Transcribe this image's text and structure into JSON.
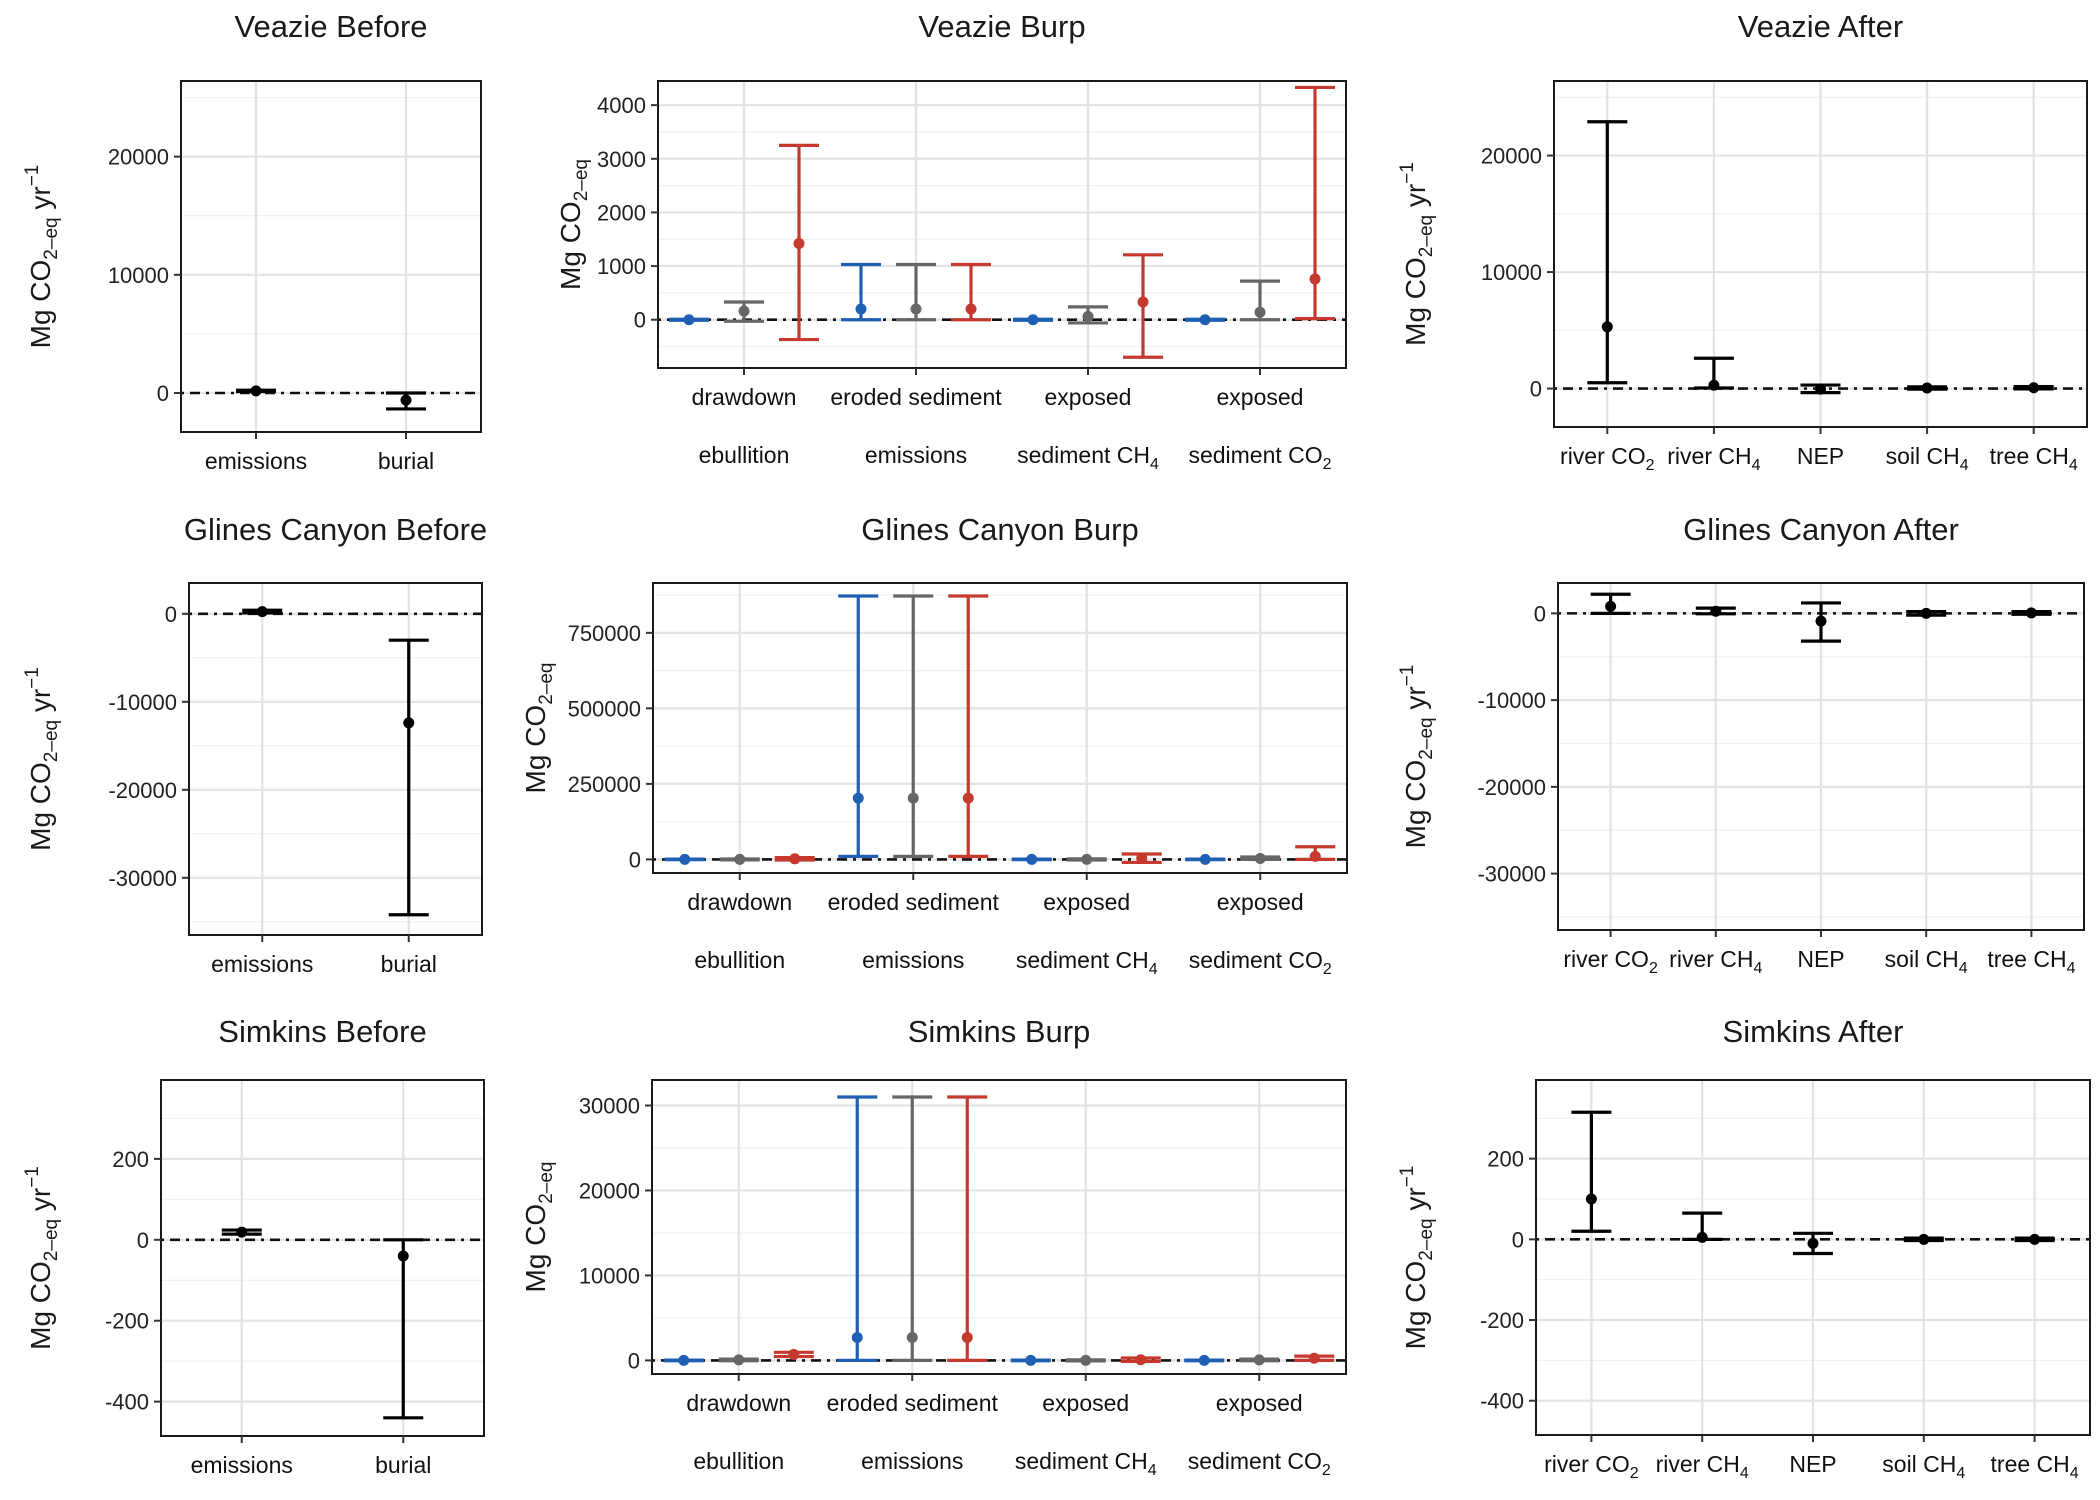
{
  "chart_data": [
    {
      "type": "errorbar",
      "title": "Veazie Before",
      "ylabel": "Mg CO2-eq yr-1",
      "categories": [
        {
          "line1": "emissions"
        },
        {
          "line1": "burial"
        }
      ],
      "ylim": [
        -3300,
        26400
      ],
      "yticks": [
        0,
        10000,
        20000
      ],
      "series": [
        {
          "color": "#000000",
          "values": [
            {
              "y": 180,
              "lo": 130,
              "hi": 230
            },
            {
              "y": -600,
              "lo": -1350,
              "hi": 0
            }
          ]
        }
      ]
    },
    {
      "type": "errorbar",
      "title": "Veazie Burp",
      "ylabel": "Mg CO2-eq",
      "categories": [
        {
          "line1": "drawdown",
          "line2": "ebullition"
        },
        {
          "line1": "eroded sediment",
          "line2": "emissions"
        },
        {
          "line1": "exposed",
          "line2": "sediment CH",
          "line2sub": "4"
        },
        {
          "line1": "exposed",
          "line2": "sediment CO",
          "line2sub": "2"
        }
      ],
      "ylim": [
        -900,
        4450
      ],
      "yticks": [
        0,
        1000,
        2000,
        3000,
        4000
      ],
      "series": [
        {
          "color": "#1f5fb4",
          "values": [
            {
              "y": 0,
              "lo": -10,
              "hi": 10
            },
            {
              "y": 200,
              "lo": 0,
              "hi": 1030
            },
            {
              "y": 0,
              "lo": -10,
              "hi": 10
            },
            {
              "y": 0,
              "lo": -10,
              "hi": 10
            }
          ]
        },
        {
          "color": "#666666",
          "values": [
            {
              "y": 160,
              "lo": -30,
              "hi": 330
            },
            {
              "y": 200,
              "lo": 0,
              "hi": 1030
            },
            {
              "y": 60,
              "lo": -60,
              "hi": 240
            },
            {
              "y": 140,
              "lo": 0,
              "hi": 720
            }
          ]
        },
        {
          "color": "#c6392f",
          "values": [
            {
              "y": 1420,
              "lo": -370,
              "hi": 3250
            },
            {
              "y": 200,
              "lo": 0,
              "hi": 1030
            },
            {
              "y": 330,
              "lo": -700,
              "hi": 1210
            },
            {
              "y": 760,
              "lo": 20,
              "hi": 4330
            }
          ]
        }
      ]
    },
    {
      "type": "errorbar",
      "title": "Veazie After",
      "ylabel": "Mg CO2-eq yr-1",
      "categories": [
        {
          "line1": "river CO",
          "line1sub": "2"
        },
        {
          "line1": "river CH",
          "line1sub": "4"
        },
        {
          "line1": "NEP"
        },
        {
          "line1": "soil CH",
          "line1sub": "4"
        },
        {
          "line1": "tree CH",
          "line1sub": "4"
        }
      ],
      "ylim": [
        -3300,
        26400
      ],
      "yticks": [
        0,
        10000,
        20000
      ],
      "series": [
        {
          "color": "#000000",
          "values": [
            {
              "y": 5300,
              "lo": 500,
              "hi": 22900
            },
            {
              "y": 280,
              "lo": 50,
              "hi": 2600
            },
            {
              "y": -50,
              "lo": -350,
              "hi": 300
            },
            {
              "y": 50,
              "lo": -50,
              "hi": 150
            },
            {
              "y": 70,
              "lo": -30,
              "hi": 170
            }
          ]
        }
      ]
    },
    {
      "type": "errorbar",
      "title": "Glines Canyon Before",
      "ylabel": "Mg CO2-eq yr-1",
      "categories": [
        {
          "line1": "emissions"
        },
        {
          "line1": "burial"
        }
      ],
      "ylim": [
        -36500,
        3500
      ],
      "yticks": [
        -30000,
        -20000,
        -10000,
        0
      ],
      "series": [
        {
          "color": "#000000",
          "values": [
            {
              "y": 250,
              "lo": 100,
              "hi": 400
            },
            {
              "y": -12400,
              "lo": -34200,
              "hi": -3000
            }
          ]
        }
      ]
    },
    {
      "type": "errorbar",
      "title": "Glines Canyon Burp",
      "ylabel": "Mg CO2-eq",
      "categories": [
        {
          "line1": "drawdown",
          "line2": "ebullition"
        },
        {
          "line1": "eroded sediment",
          "line2": "emissions"
        },
        {
          "line1": "exposed",
          "line2": "sediment CH",
          "line2sub": "4"
        },
        {
          "line1": "exposed",
          "line2": "sediment CO",
          "line2sub": "2"
        }
      ],
      "ylim": [
        -45000,
        915000
      ],
      "yticks": [
        0,
        250000,
        500000,
        750000
      ],
      "series": [
        {
          "color": "#1f5fb4",
          "values": [
            {
              "y": 0,
              "lo": -1000,
              "hi": 1000
            },
            {
              "y": 203000,
              "lo": 10000,
              "hi": 872000
            },
            {
              "y": 0,
              "lo": -1000,
              "hi": 1000
            },
            {
              "y": 0,
              "lo": -1000,
              "hi": 1000
            }
          ]
        },
        {
          "color": "#666666",
          "values": [
            {
              "y": 0,
              "lo": -1500,
              "hi": 1500
            },
            {
              "y": 203000,
              "lo": 10000,
              "hi": 872000
            },
            {
              "y": 0,
              "lo": -2000,
              "hi": 2000
            },
            {
              "y": 3000,
              "lo": 0,
              "hi": 8000
            }
          ]
        },
        {
          "color": "#c6392f",
          "values": [
            {
              "y": 2000,
              "lo": -2000,
              "hi": 6000
            },
            {
              "y": 203000,
              "lo": 10000,
              "hi": 872000
            },
            {
              "y": 4000,
              "lo": -10000,
              "hi": 18000
            },
            {
              "y": 10000,
              "lo": 0,
              "hi": 42000
            }
          ]
        }
      ]
    },
    {
      "type": "errorbar",
      "title": "Glines Canyon After",
      "ylabel": "Mg CO2-eq yr-1",
      "categories": [
        {
          "line1": "river CO",
          "line1sub": "2"
        },
        {
          "line1": "river CH",
          "line1sub": "4"
        },
        {
          "line1": "NEP"
        },
        {
          "line1": "soil CH",
          "line1sub": "4"
        },
        {
          "line1": "tree CH",
          "line1sub": "4"
        }
      ],
      "ylim": [
        -36500,
        3500
      ],
      "yticks": [
        -30000,
        -20000,
        -10000,
        0
      ],
      "series": [
        {
          "color": "#000000",
          "values": [
            {
              "y": 800,
              "lo": 0,
              "hi": 2200
            },
            {
              "y": 250,
              "lo": -50,
              "hi": 600
            },
            {
              "y": -900,
              "lo": -3200,
              "hi": 1200
            },
            {
              "y": 0,
              "lo": -200,
              "hi": 200
            },
            {
              "y": 50,
              "lo": -100,
              "hi": 200
            }
          ]
        }
      ]
    },
    {
      "type": "errorbar",
      "title": "Simkins Before",
      "ylabel": "Mg CO2-eq yr-1",
      "categories": [
        {
          "line1": "emissions"
        },
        {
          "line1": "burial"
        }
      ],
      "ylim": [
        -485,
        395
      ],
      "yticks": [
        -400,
        -200,
        0,
        200
      ],
      "series": [
        {
          "color": "#000000",
          "values": [
            {
              "y": 19,
              "lo": 14,
              "hi": 24
            },
            {
              "y": -40,
              "lo": -440,
              "hi": 0
            }
          ]
        }
      ]
    },
    {
      "type": "errorbar",
      "title": "Simkins Burp",
      "ylabel": "Mg CO2-eq",
      "categories": [
        {
          "line1": "drawdown",
          "line2": "ebullition"
        },
        {
          "line1": "eroded sediment",
          "line2": "emissions"
        },
        {
          "line1": "exposed",
          "line2": "sediment CH",
          "line2sub": "4"
        },
        {
          "line1": "exposed",
          "line2": "sediment CO",
          "line2sub": "2"
        }
      ],
      "ylim": [
        -1600,
        33000
      ],
      "yticks": [
        0,
        10000,
        20000,
        30000
      ],
      "series": [
        {
          "color": "#1f5fb4",
          "values": [
            {
              "y": 0,
              "lo": -40,
              "hi": 40
            },
            {
              "y": 2700,
              "lo": 0,
              "hi": 31000
            },
            {
              "y": 0,
              "lo": -40,
              "hi": 40
            },
            {
              "y": 0,
              "lo": -40,
              "hi": 40
            }
          ]
        },
        {
          "color": "#666666",
          "values": [
            {
              "y": 60,
              "lo": -40,
              "hi": 160
            },
            {
              "y": 2700,
              "lo": 0,
              "hi": 31000
            },
            {
              "y": 0,
              "lo": -60,
              "hi": 60
            },
            {
              "y": 60,
              "lo": -40,
              "hi": 160
            }
          ]
        },
        {
          "color": "#c6392f",
          "values": [
            {
              "y": 700,
              "lo": 450,
              "hi": 950
            },
            {
              "y": 2700,
              "lo": 0,
              "hi": 31000
            },
            {
              "y": 80,
              "lo": -120,
              "hi": 280
            },
            {
              "y": 250,
              "lo": 0,
              "hi": 500
            }
          ]
        }
      ]
    },
    {
      "type": "errorbar",
      "title": "Simkins After",
      "ylabel": "Mg CO2-eq yr-1",
      "categories": [
        {
          "line1": "river CO",
          "line1sub": "2"
        },
        {
          "line1": "river CH",
          "line1sub": "4"
        },
        {
          "line1": "NEP"
        },
        {
          "line1": "soil CH",
          "line1sub": "4"
        },
        {
          "line1": "tree CH",
          "line1sub": "4"
        }
      ],
      "ylim": [
        -485,
        395
      ],
      "yticks": [
        -400,
        -200,
        0,
        200
      ],
      "series": [
        {
          "color": "#000000",
          "values": [
            {
              "y": 100,
              "lo": 20,
              "hi": 315
            },
            {
              "y": 5,
              "lo": 0,
              "hi": 65
            },
            {
              "y": -10,
              "lo": -35,
              "hi": 15
            },
            {
              "y": 0,
              "lo": -3,
              "hi": 3
            },
            {
              "y": 0,
              "lo": -3,
              "hi": 3
            }
          ]
        }
      ]
    }
  ]
}
